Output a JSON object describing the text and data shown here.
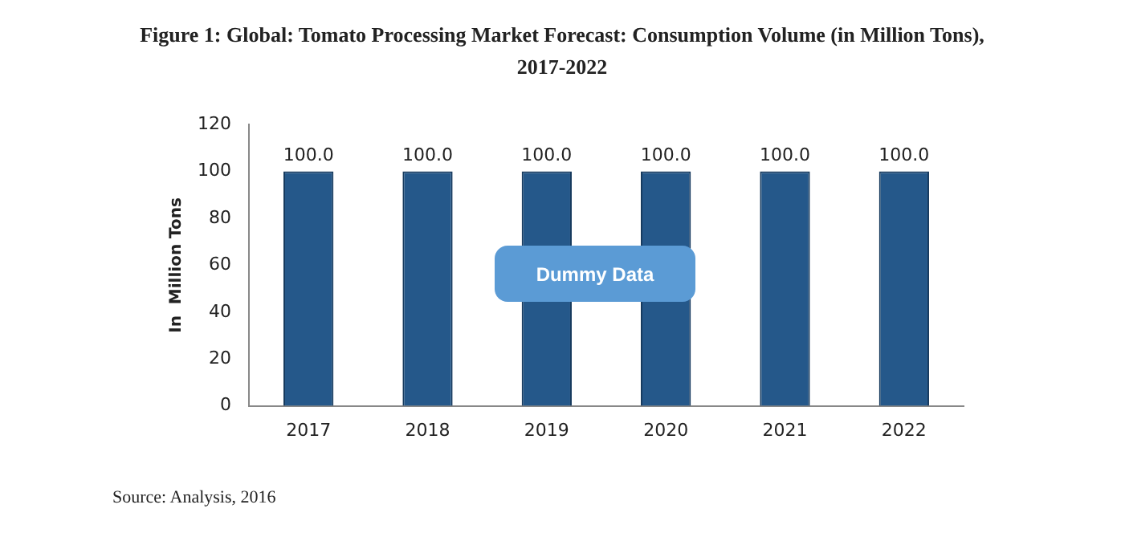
{
  "chart_data": {
    "type": "bar",
    "title": "Figure 1: Global: Tomato Processing Market Forecast: Consumption Volume (in Million Tons), 2017-2022",
    "ylabel": "In  Million Tons",
    "categories": [
      "2017",
      "2018",
      "2019",
      "2020",
      "2021",
      "2022"
    ],
    "values": [
      100,
      100,
      100,
      100,
      100,
      100
    ],
    "value_labels": [
      "100.0",
      "100.0",
      "100.0",
      "100.0",
      "100.0",
      "100.0"
    ],
    "color": "#25588a",
    "ylim": [
      0,
      120
    ],
    "yticks": [
      0,
      20,
      40,
      60,
      80,
      100,
      120
    ],
    "grid": false,
    "legend": false,
    "annotations": [
      "Dummy Data",
      "Source: Analysis, 2016"
    ]
  }
}
